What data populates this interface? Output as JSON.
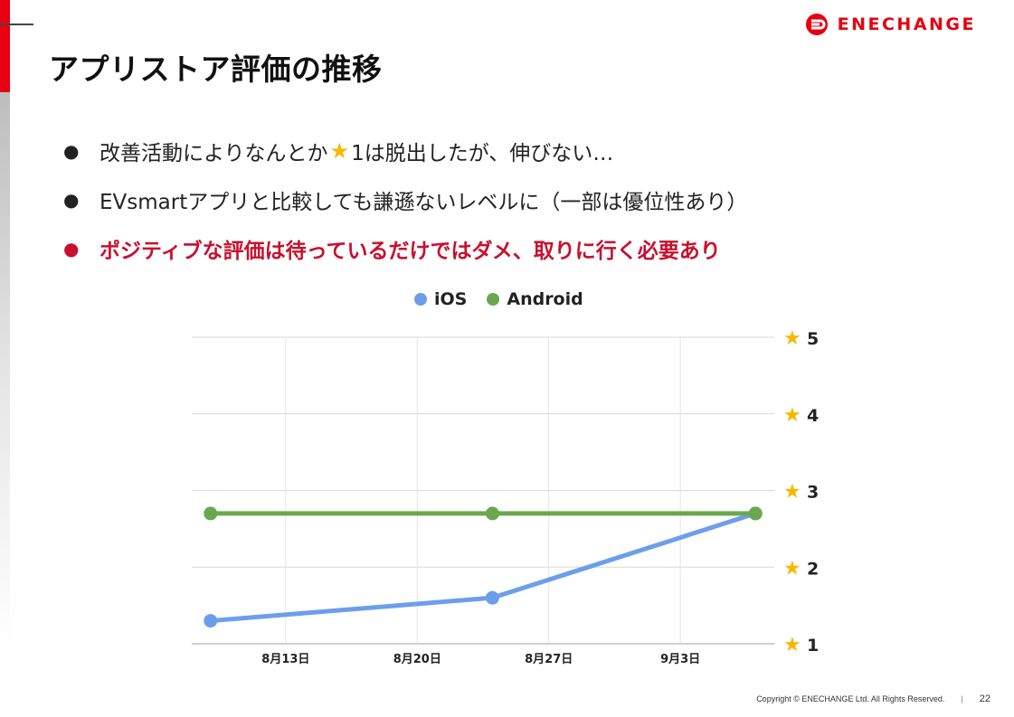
{
  "brand": {
    "name": "ENECHANGE",
    "color": "#e60012"
  },
  "title": "アプリストア評価の推移",
  "bullets": [
    {
      "before": "改善活動によりなんとか",
      "icon": "star-icon",
      "after": "1は脱出したが、伸びない…",
      "emphasis": false
    },
    {
      "text": "EVsmartアプリと比較しても謙遜ないレベルに（一部は優位性あり）",
      "emphasis": false
    },
    {
      "text": "ポジティブな評価は待っているだけではダメ、取りに行く必要あり",
      "emphasis": true,
      "color": "#c8102e"
    }
  ],
  "chart_data": {
    "type": "line",
    "title": "",
    "xlabel": "",
    "ylabel": "",
    "x_ticks": [
      "8月13日",
      "8月20日",
      "8月27日",
      "9月3日"
    ],
    "y_ticks": [
      "1",
      "2",
      "3",
      "4",
      "5"
    ],
    "y_tick_icon": "star-icon",
    "ylim": [
      1,
      5
    ],
    "grid": true,
    "legend_position": "top",
    "series": [
      {
        "name": "iOS",
        "color": "#6d9eeb",
        "points": [
          {
            "x": "8月9日",
            "y": 1.3
          },
          {
            "x": "8月24日",
            "y": 1.6
          },
          {
            "x": "9月7日",
            "y": 2.7
          }
        ]
      },
      {
        "name": "Android",
        "color": "#6aa84f",
        "points": [
          {
            "x": "8月9日",
            "y": 2.7
          },
          {
            "x": "8月24日",
            "y": 2.7
          },
          {
            "x": "9月7日",
            "y": 2.7
          }
        ]
      }
    ]
  },
  "footer": {
    "copyright": "Copyright © ENECHANGE Ltd.  All Rights Reserved.",
    "separator": "|",
    "page_number": "22"
  }
}
